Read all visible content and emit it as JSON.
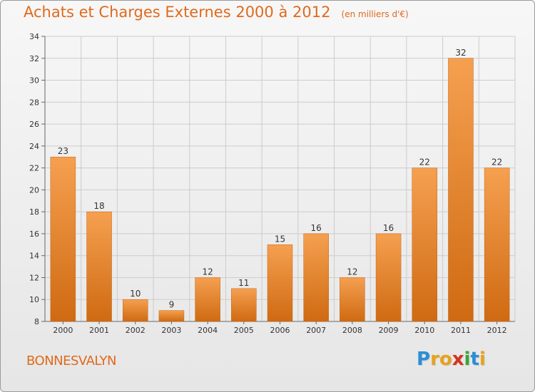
{
  "header": {
    "title": "Achats et Charges Externes 2000 à 2012",
    "unit": "(en milliers d'€)"
  },
  "footer": {
    "commune": "BONNESVALYN",
    "brand": "Proxiti",
    "brand_letters": [
      {
        "ch": "P",
        "color": "#2a8fd6"
      },
      {
        "ch": "r",
        "color": "#e8a21c"
      },
      {
        "ch": "o",
        "color": "#e8a21c"
      },
      {
        "ch": "x",
        "color": "#d6321e"
      },
      {
        "ch": "i",
        "color": "#3aa43a"
      },
      {
        "ch": "t",
        "color": "#2a8fd6"
      },
      {
        "ch": "i",
        "color": "#e8a21c"
      }
    ]
  },
  "colors": {
    "accent": "#e06a1c",
    "bar_top": "#f5a050",
    "bar_bottom": "#cf6a12"
  },
  "chart_data": {
    "type": "bar",
    "title": "Achats et Charges Externes 2000 à 2012",
    "categories": [
      "2000",
      "2001",
      "2002",
      "2003",
      "2004",
      "2005",
      "2006",
      "2007",
      "2008",
      "2009",
      "2010",
      "2011",
      "2012"
    ],
    "values": [
      23,
      18,
      10,
      9,
      12,
      11,
      15,
      16,
      12,
      16,
      22,
      32,
      22
    ],
    "ylim": [
      8,
      34
    ],
    "yticks": [
      8,
      10,
      12,
      14,
      16,
      18,
      20,
      22,
      24,
      26,
      28,
      30,
      32,
      34
    ],
    "grid": true
  }
}
